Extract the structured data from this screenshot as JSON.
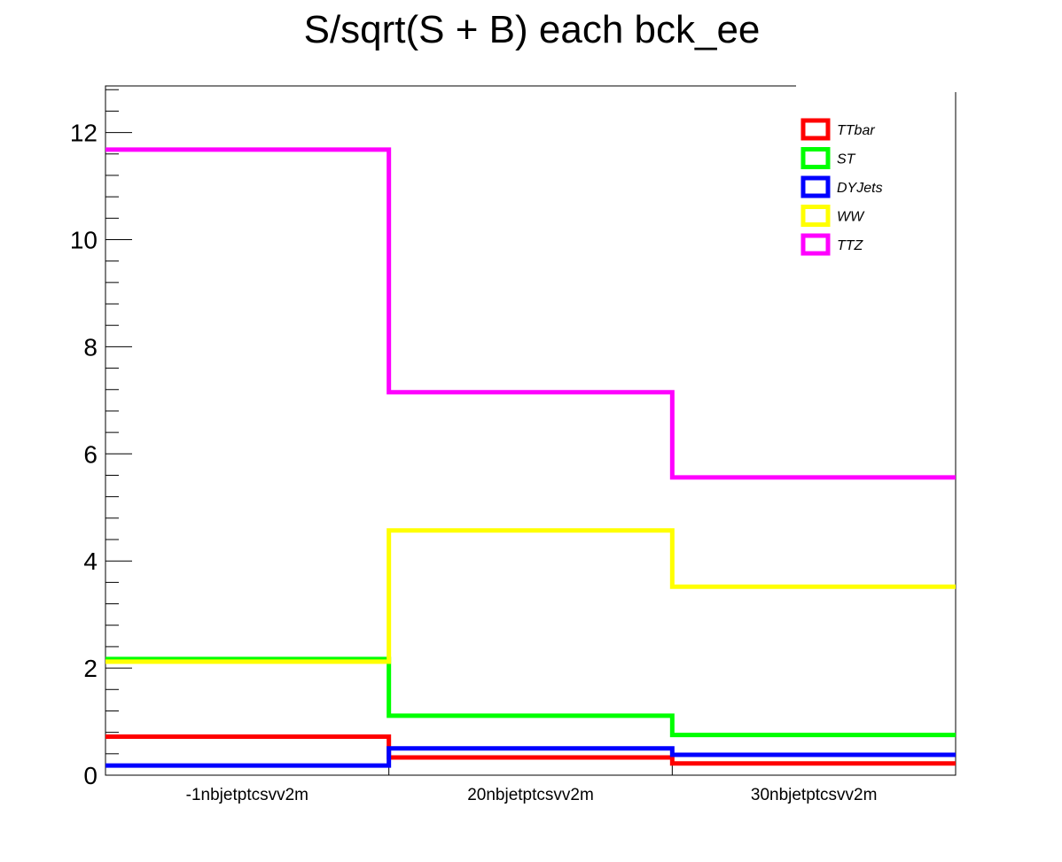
{
  "chart_data": {
    "type": "line",
    "title": "S/sqrt(S + B) each bck_ee",
    "xlabel": "",
    "ylabel": "",
    "categories": [
      "-1nbjetptcsvv2m",
      "20nbjetptcsvv2m",
      "30nbjetptcsvv2m"
    ],
    "ylim": [
      0,
      12.87
    ],
    "yticks": [
      0,
      2,
      4,
      6,
      8,
      10,
      12
    ],
    "grid": false,
    "legend_position": "top-right",
    "series": [
      {
        "name": "TTbar",
        "color": "#ff0000",
        "values": [
          0.72,
          0.33,
          0.22
        ]
      },
      {
        "name": "ST",
        "color": "#00ff00",
        "values": [
          2.17,
          1.11,
          0.75
        ]
      },
      {
        "name": "DYJets",
        "color": "#0000ff",
        "values": [
          0.18,
          0.5,
          0.38
        ]
      },
      {
        "name": "WW",
        "color": "#ffff00",
        "values": [
          2.12,
          4.57,
          3.52
        ]
      },
      {
        "name": "TTZ",
        "color": "#ff00ff",
        "values": [
          11.68,
          7.15,
          5.56
        ]
      }
    ]
  }
}
